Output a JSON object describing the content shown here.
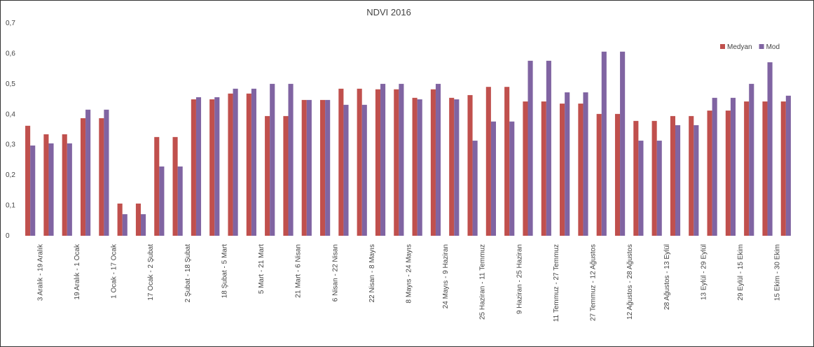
{
  "chart_data": {
    "type": "bar",
    "title": "NDVI 2016",
    "categories": [
      "3 Aralık - 19 Aralık",
      null,
      "19 Aralık - 1 Ocak",
      null,
      "1 Ocak - 17 Ocak",
      null,
      "17 Ocak - 2 Şubat",
      null,
      "2 Şubat - 18 Şubat",
      null,
      "18 Şubat - 5 Mart",
      null,
      "5 Mart - 21 Mart",
      null,
      "21 Mart - 6 Nisan",
      null,
      "6 Nisan - 22 Nisan",
      null,
      "22 Nisan - 8 Mayıs",
      null,
      "8 Mayıs - 24 Mayıs",
      null,
      "24 Mayıs - 9 Haziran",
      null,
      "25 Haziran - 11 Temmuz",
      null,
      "9 Haziran - 25 Haziran",
      null,
      "11 Temmuz - 27 Temmuz",
      null,
      "27 Temmuz - 12 Ağustos",
      null,
      "12 Ağustos - 28 Ağustos",
      null,
      "28 Ağustos - 13 Eylül",
      null,
      "13 Eylül - 29 Eylül",
      null,
      "29 Eylül - 15 Ekim",
      null,
      "15 Ekim - 30 Ekim",
      null
    ],
    "series": [
      {
        "name": "Medyan",
        "color": "#c0504d",
        "values": [
          0.362,
          0.334,
          0.334,
          0.387,
          0.387,
          0.106,
          0.106,
          0.325,
          0.325,
          0.449,
          0.449,
          0.468,
          0.468,
          0.394,
          0.394,
          0.447,
          0.447,
          0.484,
          0.484,
          0.482,
          0.482,
          0.454,
          0.482,
          0.454,
          0.463,
          0.49,
          0.49,
          0.442,
          0.442,
          0.435,
          0.435,
          0.401,
          0.401,
          0.378,
          0.378,
          0.394,
          0.394,
          0.412,
          0.412,
          0.442,
          0.442,
          0.442
        ]
      },
      {
        "name": "Mod",
        "color": "#8064a2",
        "values": [
          0.297,
          0.304,
          0.304,
          0.415,
          0.415,
          0.071,
          0.071,
          0.228,
          0.228,
          0.456,
          0.456,
          0.484,
          0.484,
          0.5,
          0.5,
          0.447,
          0.447,
          0.431,
          0.431,
          0.5,
          0.5,
          0.449,
          0.5,
          0.449,
          0.313,
          0.376,
          0.376,
          0.576,
          0.576,
          0.472,
          0.472,
          0.606,
          0.606,
          0.313,
          0.313,
          0.364,
          0.364,
          0.454,
          0.454,
          0.5,
          0.571,
          0.461
        ]
      }
    ],
    "ylim": [
      0,
      0.7
    ],
    "yticks": [
      0,
      {
        "value": 0.1,
        "label": "0,1"
      },
      {
        "value": 0.2,
        "label": "0,2"
      },
      {
        "value": 0.3,
        "label": "0,3"
      },
      {
        "value": 0.4,
        "label": "0,4"
      },
      {
        "value": 0.5,
        "label": "0,5"
      },
      {
        "value": 0.6,
        "label": "0,6"
      },
      {
        "value": 0.7,
        "label": "0,7"
      }
    ],
    "legend": "top-right"
  }
}
